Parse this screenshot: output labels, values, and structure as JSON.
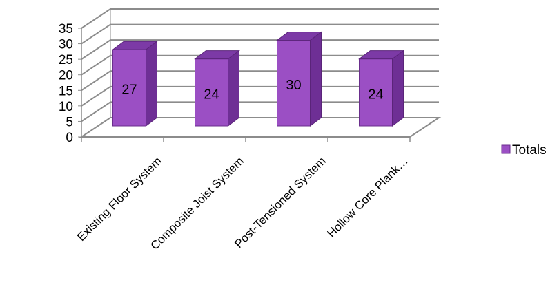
{
  "chart_data": {
    "type": "bar",
    "style": "3d-clustered-column",
    "categories": [
      "Existing Floor System",
      "Composite Joist System",
      "Post-Tensioned System",
      "Hollow Core Plank…"
    ],
    "series": [
      {
        "name": "Totals",
        "values": [
          27,
          24,
          30,
          24
        ],
        "color": "#9b4fc4"
      }
    ],
    "data_labels": [
      "27",
      "24",
      "30",
      "24"
    ],
    "ylim": [
      0,
      35
    ],
    "yticks": [
      "0",
      "5",
      "10",
      "15",
      "20",
      "25",
      "30",
      "35"
    ],
    "grid": true,
    "legend": "right",
    "title": "",
    "xlabel": "",
    "ylabel": ""
  }
}
